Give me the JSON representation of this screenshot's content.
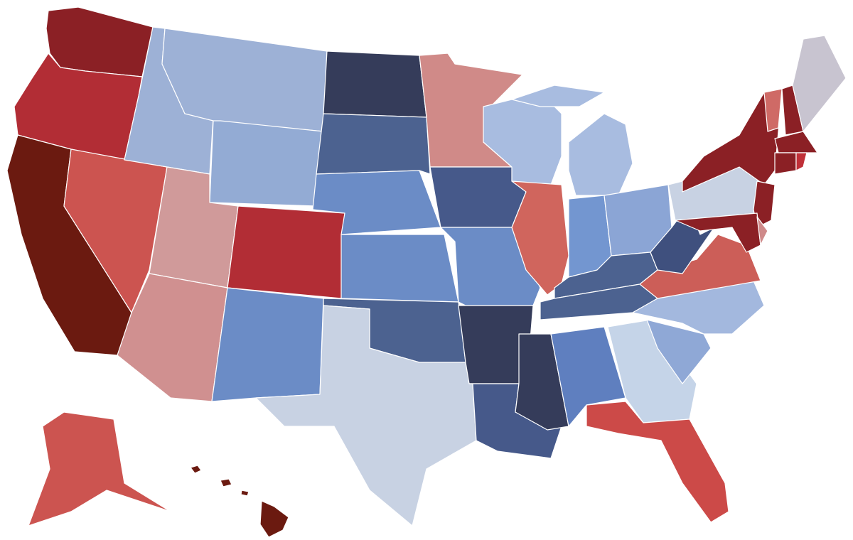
{
  "map": {
    "fills": [
      "#8b2025",
      "#b22d35",
      "#6b1a10",
      "#cc5450",
      "#9db1d6",
      "#9db1d6",
      "#93abd4",
      "#d09a9a",
      "#b22d35",
      "#d09090",
      "#6b8cc6",
      "#353c5a",
      "#4c6290",
      "#6b8cc6",
      "#6b8cc6",
      "#4c6290",
      "#c8d2e3",
      "#d08a88",
      "#46598a",
      "#6b8cc6",
      "#353c5a",
      "#46598a",
      "#a8bce0",
      "#a8bce0",
      "#a8bce0",
      "#d0655d",
      "#7396d0",
      "#8ba5d5",
      "#4c6290",
      "#4c6290",
      "#353c5a",
      "#5f7fbf",
      "#c5d4e8",
      "#cc4a48",
      "#8fa8d6",
      "#a3b8de",
      "#cc5e58",
      "#3f507e",
      "#c8d2e3",
      "#8b2025",
      "#8b2025",
      "#8b2025",
      "#cf8a8a",
      "#cf6a66",
      "#8b2025",
      "#c8c4d0",
      "#8b2025",
      "#8b2025",
      "#c03038",
      "#cc5450",
      "#6b1a10"
    ]
  }
}
